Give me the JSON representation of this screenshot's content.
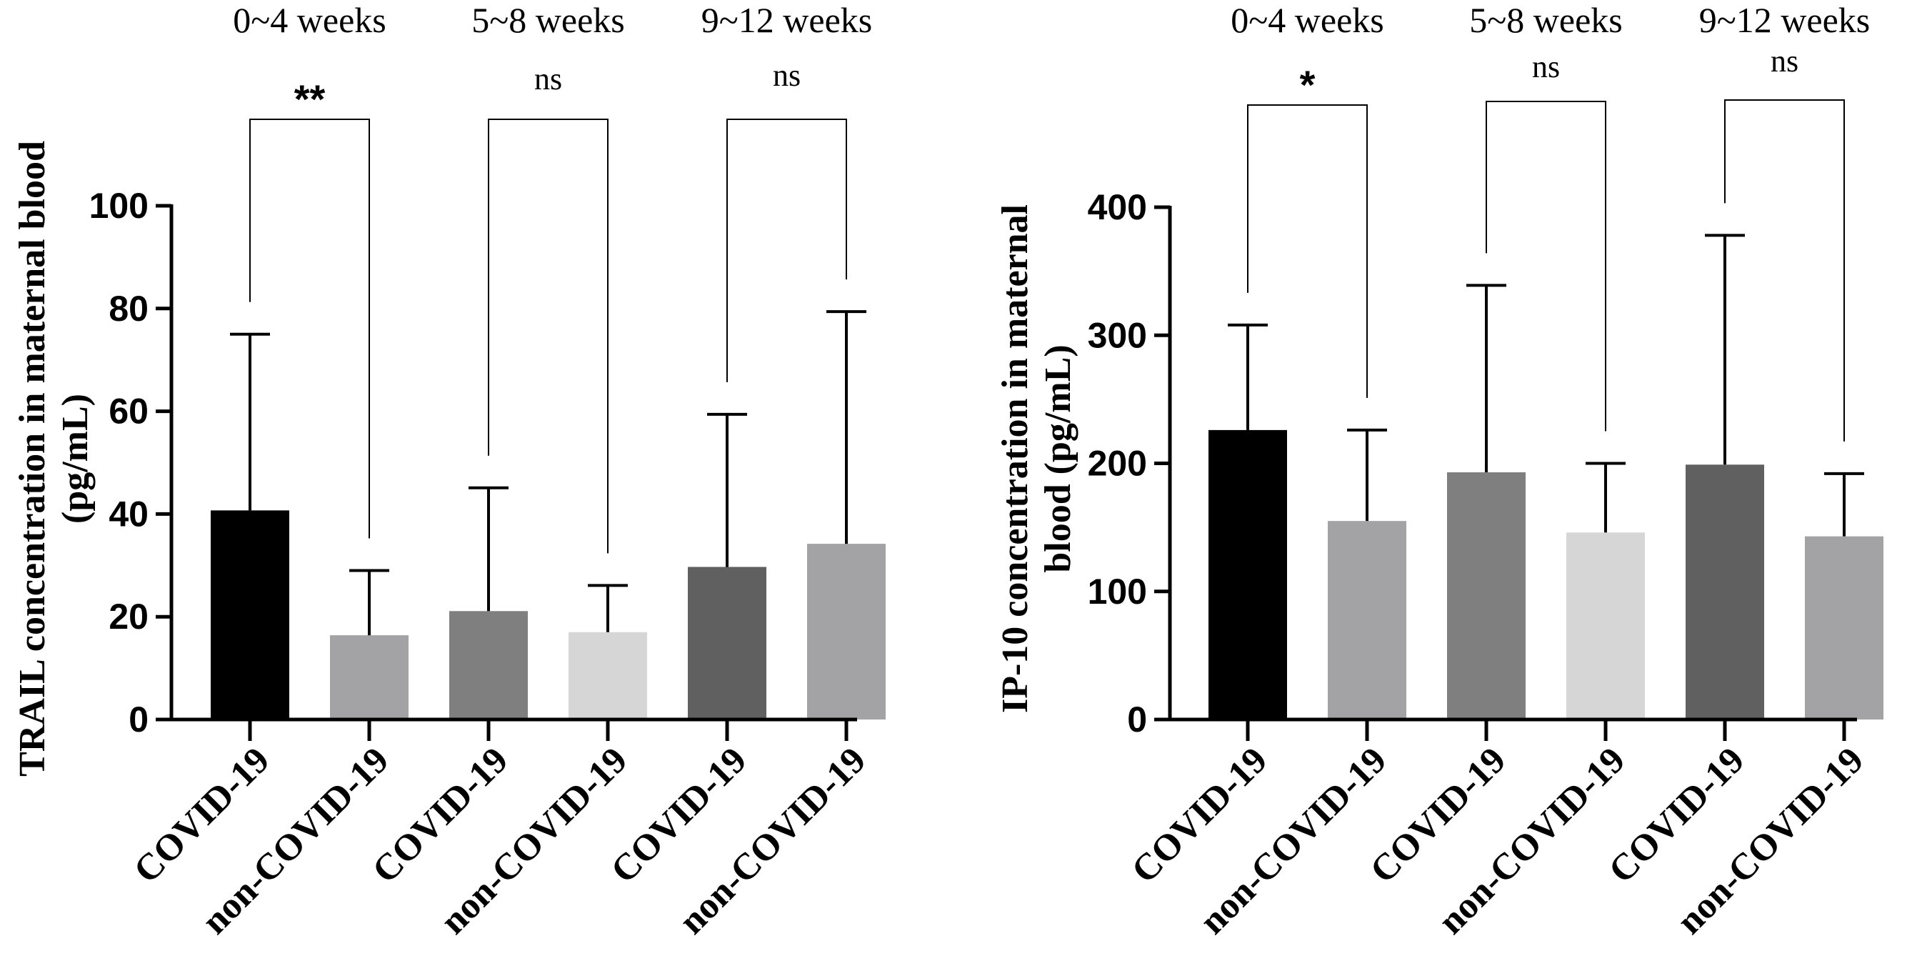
{
  "chart_data": [
    {
      "type": "bar",
      "title": "",
      "ylabel_lines": [
        "TRAIL concentration in maternal blood",
        "(pg/mL)"
      ],
      "xlabel": "",
      "ylim": [
        0,
        100
      ],
      "yticks": [
        0,
        20,
        40,
        60,
        80,
        100
      ],
      "categories": [
        "COVID-19",
        "non-COVID-19",
        "COVID-19",
        "non-COVID-19",
        "COVID-19",
        "non-COVID-19"
      ],
      "values": [
        40.7,
        16.4,
        21.1,
        17.0,
        29.7,
        34.2
      ],
      "error_upper": [
        75.0,
        29.0,
        45.1,
        26.1,
        59.4,
        79.4
      ],
      "colors": [
        "#000000",
        "#a3a3a6",
        "#7f7f7f",
        "#d6d6d6",
        "#606060",
        "#a3a3a6"
      ],
      "groups": [
        "0~4 weeks",
        "5~8 weeks",
        "9~12 weeks"
      ],
      "significance": [
        "**",
        "ns",
        "ns"
      ]
    },
    {
      "type": "bar",
      "title": "",
      "ylabel_lines": [
        "IP-10 concentration in maternal",
        "blood (pg/mL)"
      ],
      "xlabel": "",
      "ylim": [
        0,
        400
      ],
      "yticks": [
        0,
        100,
        200,
        300,
        400
      ],
      "categories": [
        "COVID-19",
        "non-COVID-19",
        "COVID-19",
        "non-COVID-19",
        "COVID-19",
        "non-COVID-19"
      ],
      "values": [
        226,
        155,
        193,
        146,
        199,
        143
      ],
      "error_upper": [
        308,
        226,
        339,
        200,
        378,
        192
      ],
      "colors": [
        "#000000",
        "#a3a3a6",
        "#7f7f7f",
        "#d6d6d6",
        "#606060",
        "#a3a3a6"
      ],
      "groups": [
        "0~4 weeks",
        "5~8 weeks",
        "9~12 weeks"
      ],
      "significance": [
        "*",
        "ns",
        "ns"
      ]
    }
  ]
}
